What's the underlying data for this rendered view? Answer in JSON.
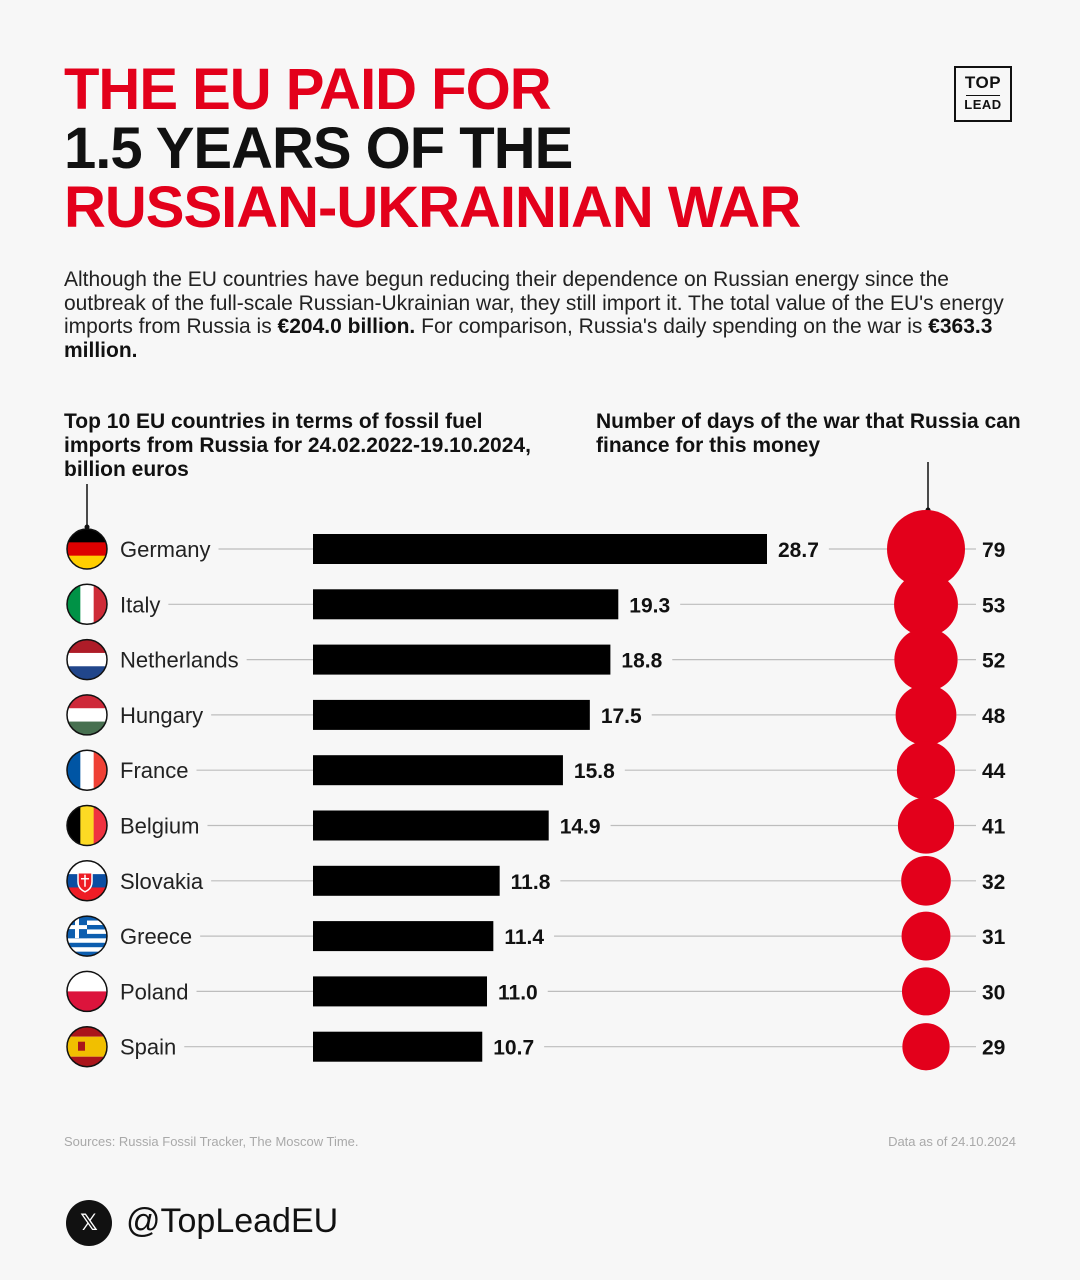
{
  "headline": {
    "line1": "THE EU PAID FOR",
    "line2": "1.5 YEARS OF THE",
    "line3": "RUSSIAN-UKRAINIAN WAR"
  },
  "logo": {
    "top": "TOP",
    "bottom": "LEAD"
  },
  "intro": {
    "text1": "Although the EU countries have begun reducing their dependence on Russian energy since the outbreak of the full-scale Russian-Ukrainian war, they still import it. The total value of the EU's energy imports from Russia is ",
    "bold1": "€204.0 billion.",
    "text2": " For comparison, Russia's daily spending on the war is ",
    "bold2": "€363.3 million."
  },
  "subtitles": {
    "left": "Top 10 EU countries in terms of fossil fuel imports from Russia for 24.02.2022-19.10.2024, billion euros",
    "right": "Number of days of the war that Russia can finance for this money"
  },
  "colors": {
    "accent": "#e3001b",
    "bar": "#000000",
    "connector": "#bdbdbd"
  },
  "chart_data": {
    "type": "bar",
    "title": "Top 10 EU countries in terms of fossil fuel imports from Russia for 24.02.2022-19.10.2024, billion euros",
    "categories": [
      "Germany",
      "Italy",
      "Netherlands",
      "Hungary",
      "France",
      "Belgium",
      "Slovakia",
      "Greece",
      "Poland",
      "Spain"
    ],
    "flags": [
      "de-flag-icon",
      "it-flag-icon",
      "nl-flag-icon",
      "hu-flag-icon",
      "fr-flag-icon",
      "be-flag-icon",
      "sk-flag-icon",
      "gr-flag-icon",
      "pl-flag-icon",
      "es-flag-icon"
    ],
    "series": [
      {
        "name": "Fossil fuel imports from Russia, billion euros",
        "values": [
          28.7,
          19.3,
          18.8,
          17.5,
          15.8,
          14.9,
          11.8,
          11.4,
          11.0,
          10.7
        ]
      },
      {
        "name": "Number of days of the war that Russia can finance for this money",
        "values": [
          79,
          53,
          52,
          48,
          44,
          41,
          32,
          31,
          30,
          29
        ]
      }
    ],
    "labels": {
      "imports": [
        "28.7",
        "19.3",
        "18.8",
        "17.5",
        "15.8",
        "14.9",
        "11.8",
        "11.4",
        "11.0",
        "10.7"
      ],
      "days": [
        "79",
        "53",
        "52",
        "48",
        "44",
        "41",
        "32",
        "31",
        "30",
        "29"
      ]
    }
  },
  "footer": {
    "sources": "Sources: Russia Fossil Tracker, The Moscow Time.",
    "date": "Data as of 24.10.2024",
    "handle": "@TopLeadEU",
    "x_icon_glyph": "𝕏"
  }
}
